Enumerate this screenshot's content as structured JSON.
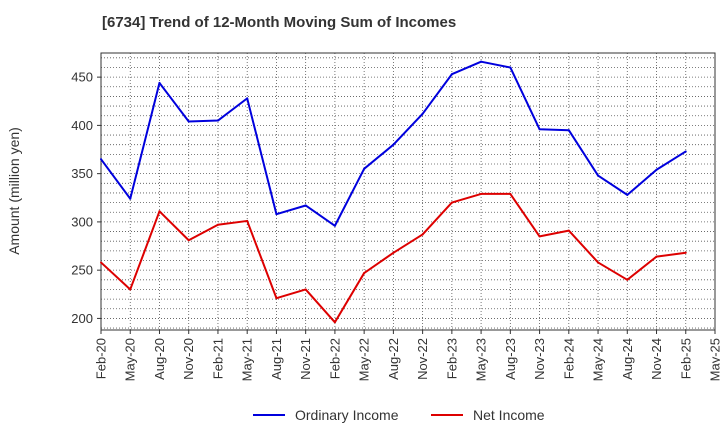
{
  "chart_data": {
    "type": "line",
    "title": "[6734]  Trend of 12-Month Moving Sum of Incomes",
    "xlabel": "",
    "ylabel": "Amount (million yen)",
    "ylim": [
      188,
      475
    ],
    "yticks": [
      200,
      250,
      300,
      350,
      400,
      450
    ],
    "categories": [
      "Feb-20",
      "May-20",
      "Aug-20",
      "Nov-20",
      "Feb-21",
      "May-21",
      "Aug-21",
      "Nov-21",
      "Feb-22",
      "May-22",
      "Aug-22",
      "Nov-22",
      "Feb-23",
      "May-23",
      "Aug-23",
      "Nov-23",
      "Feb-24",
      "May-24",
      "Aug-24",
      "Nov-24",
      "Feb-25",
      "May-25"
    ],
    "grid": true,
    "legend_position": "bottom",
    "series": [
      {
        "name": "Ordinary Income",
        "color": "#0000dd",
        "values": [
          365,
          324,
          444,
          404,
          405,
          428,
          308,
          317,
          296,
          355,
          380,
          412,
          453,
          466,
          460,
          396,
          395,
          348,
          328,
          354,
          373,
          null
        ]
      },
      {
        "name": "Net Income",
        "color": "#dd0000",
        "values": [
          258,
          230,
          311,
          281,
          297,
          301,
          221,
          230,
          196,
          247,
          268,
          287,
          320,
          329,
          329,
          285,
          291,
          258,
          240,
          264,
          268,
          null
        ]
      }
    ]
  }
}
